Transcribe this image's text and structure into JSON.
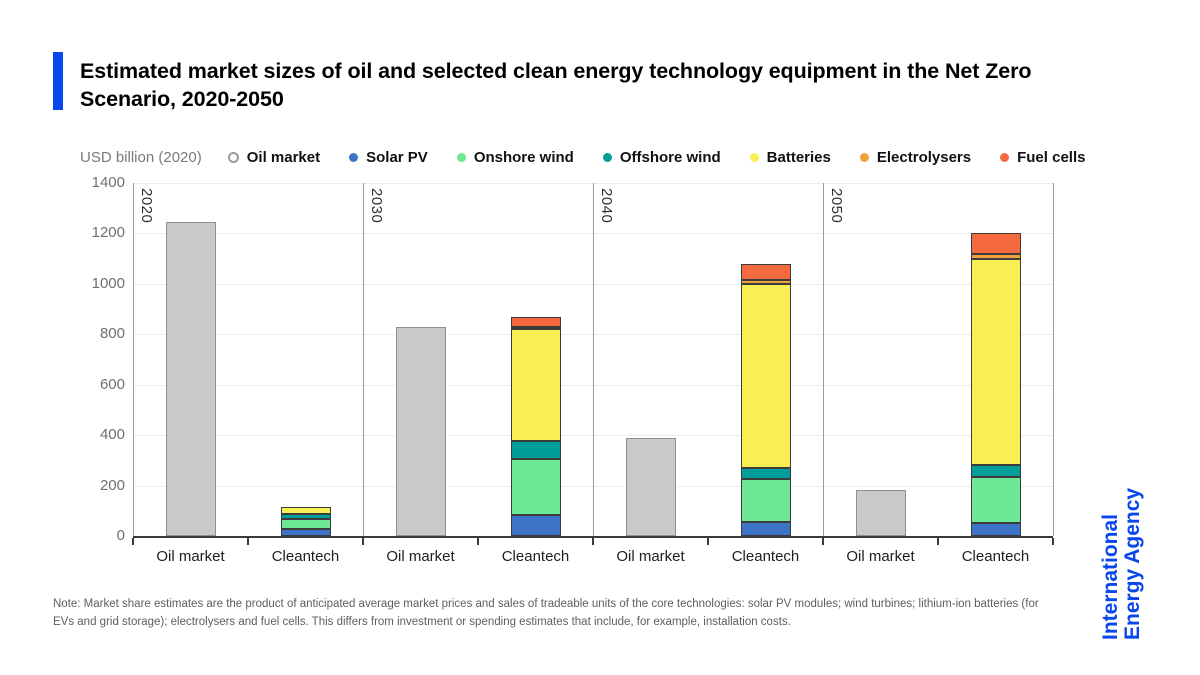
{
  "header": {
    "title": "Estimated market sizes of oil and selected clean energy technology equipment in the Net Zero Scenario, 2020-2050"
  },
  "legend": {
    "unit_label": "USD billion (2020)",
    "position": "top",
    "items": [
      {
        "label": "Oil market",
        "color": "#ffffff",
        "border": "#9a9a9a",
        "hollow": true
      },
      {
        "label": "Solar PV",
        "color": "#3d74c8"
      },
      {
        "label": "Onshore wind",
        "color": "#6ce897"
      },
      {
        "label": "Offshore wind",
        "color": "#009e99"
      },
      {
        "label": "Batteries",
        "color": "#f9ee54"
      },
      {
        "label": "Electrolysers",
        "color": "#efa23c"
      },
      {
        "label": "Fuel cells",
        "color": "#f4693d"
      }
    ]
  },
  "chart_data": {
    "type": "bar",
    "title": "Estimated market sizes of oil and selected clean energy technology equipment in the Net Zero Scenario, 2020-2050",
    "unit": "USD billion (2020)",
    "groups": [
      "2020",
      "2030",
      "2040",
      "2050"
    ],
    "categories": [
      "Oil market",
      "Cleantech"
    ],
    "ylim": [
      0,
      1400
    ],
    "yticks": [
      0,
      200,
      400,
      600,
      800,
      1000,
      1200,
      1400
    ],
    "grid": true,
    "legend_position": "top",
    "oil": {
      "label": "Oil market",
      "color": "#c9c9c9",
      "border_color": "#8f8f8f",
      "values": [
        1245,
        830,
        390,
        182
      ]
    },
    "cleantech": {
      "label": "Cleantech",
      "segment_border_color": "#3c3c3c",
      "series": [
        {
          "name": "Solar PV",
          "color": "#3d74c8",
          "values": [
            26,
            85,
            55,
            50
          ]
        },
        {
          "name": "Onshore wind",
          "color": "#6ce897",
          "values": [
            41,
            220,
            170,
            185
          ]
        },
        {
          "name": "Offshore wind",
          "color": "#009e99",
          "values": [
            20,
            70,
            45,
            45
          ]
        },
        {
          "name": "Batteries",
          "color": "#f9ee54",
          "values": [
            29,
            445,
            730,
            820
          ]
        },
        {
          "name": "Electrolysers",
          "color": "#efa23c",
          "values": [
            0,
            10,
            15,
            20
          ]
        },
        {
          "name": "Fuel cells",
          "color": "#f4693d",
          "values": [
            0,
            40,
            65,
            80
          ]
        }
      ]
    }
  },
  "footer": {
    "note": "Note: Market share estimates are the product of anticipated average market prices and sales of tradeable units of the core technologies: solar PV modules; wind turbines; lithium-ion batteries (for EVs and grid storage); electrolysers and fuel cells. This differs from investment or spending estimates that include, for example, installation costs."
  },
  "branding": {
    "line1": "International",
    "line2": "Energy Agency",
    "color": "#0747eb"
  },
  "theme": {
    "accent": "#0747eb",
    "axis_color": "#3a3a3a",
    "grid_color": "#ececec",
    "separator_color": "#9b9b9b"
  }
}
